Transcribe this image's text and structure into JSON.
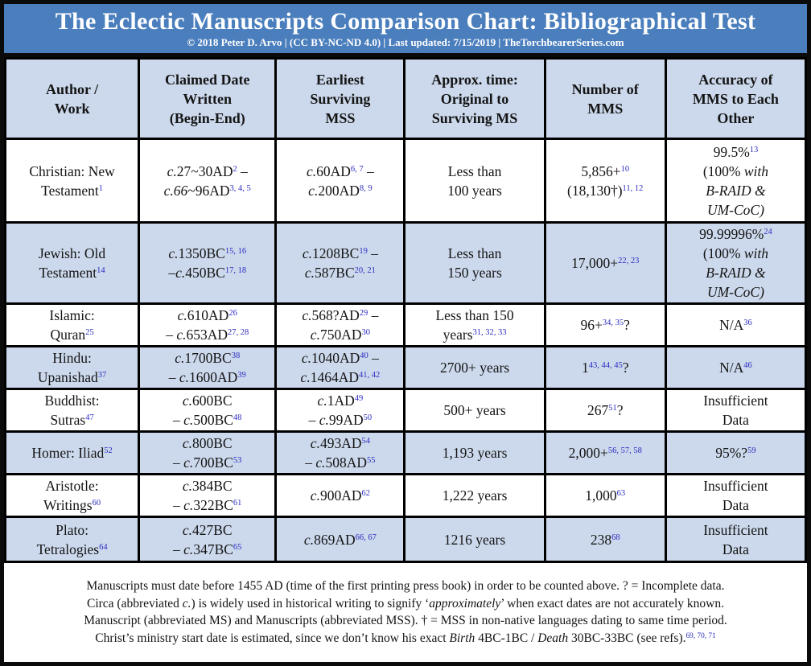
{
  "title": "The Eclectic Manuscripts Comparison Chart: Bibliographical Test",
  "subtitle": "© 2018 Peter D. Arvo | (CC BY-NC-ND 4.0) | Last updated: 7/15/2019 | TheTorchbearerSeries.com",
  "colors": {
    "header_blue": "#4a7ebd",
    "row_alt": "#ccd9ec",
    "ref_blue": "#2c2cc0",
    "border": "#000000",
    "text": "#141414",
    "title_text": "#ffffff"
  },
  "chart_data": {
    "type": "table",
    "title": "The Eclectic Manuscripts Comparison Chart: Bibliographical Test",
    "subtitle": "© 2018 Peter D. Arvo | (CC BY-NC-ND 4.0) | Last updated: 7/15/2019 | TheTorchbearerSeries.com",
    "columns": [
      "Author /\nWork",
      "Claimed Date\nWritten\n(Begin-End)",
      "Earliest\nSurviving\nMSS",
      "Approx. time:\nOriginal to\nSurviving MS",
      "Number of\nMMS",
      "Accuracy of\nMMS to Each\nOther"
    ],
    "rows": [
      {
        "author": "Christian: New\nTestament^1^",
        "claimed": "*c.*27~30AD^2^ –\n*c.66*~96AD^3, 4, 5^",
        "earliest": "*c.*60AD^6, 7^ –\n*c.*200AD^8, 9^",
        "time": "Less than\n100 years",
        "number": "5,856+^10^\n(18,130†)^11, 12^",
        "accuracy": "99.5%^13^\n(100% *with*\n*B-RAID &*\n*UM-CoC)*"
      },
      {
        "author": "Jewish: Old\nTestament^14^",
        "claimed": "*c.*1350BC^15, 16^\n–*c.*450BC^17, 18^",
        "earliest": "*c.*1208BC^19^ –\n*c.*587BC^20, 21^",
        "time": "Less than\n150 years",
        "number": "17,000+^22, 23^",
        "accuracy": "99.99996%^24^\n(100% *with*\n*B-RAID &*\n*UM-CoC)*"
      },
      {
        "author": "Islamic:\nQuran^25^",
        "claimed": "*c.*610AD^26^\n– *c.*653AD^27, 28^",
        "earliest": "*c.*568?AD^29^ –\n*c.*750AD^30^",
        "time": "Less than 150\nyears^31, 32, 33^",
        "number": "96+^34, 35^?",
        "accuracy": "N/A^36^"
      },
      {
        "author": "Hindu:\nUpanishad^37^",
        "claimed": "*c.*1700BC^38^\n– *c.*1600AD^39^",
        "earliest": "*c.*1040AD^40^ –\n*c.*1464AD^41, 42^",
        "time": "2700+ years",
        "number": "1^43, 44, 45^?",
        "accuracy": "N/A^46^"
      },
      {
        "author": "Buddhist:\nSutras^47^",
        "claimed": "*c.*600BC\n– *c.*500BC^48^",
        "earliest": "*c.*1AD^49^\n– *c.*99AD^50^",
        "time": "500+ years",
        "number": "267^51^?",
        "accuracy": "Insufficient\nData"
      },
      {
        "author": "Homer: Iliad^52^",
        "claimed": "*c.*800BC\n– *c.*700BC^53^",
        "earliest": "*c.*493AD^54^\n– *c.*508AD^55^",
        "time": "1,193 years",
        "number": "2,000+^56, 57, 58^",
        "accuracy": "95%?^59^"
      },
      {
        "author": "Aristotle:\nWritings^60^",
        "claimed": "*c.*384BC\n– *c.*322BC^61^",
        "earliest": "*c.*900AD^62^",
        "time": "1,222 years",
        "number": "1,000^63^",
        "accuracy": "Insufficient\nData"
      },
      {
        "author": "Plato:\nTetralogies^64^",
        "claimed": "*c.*427BC\n– *c.*347BC^65^",
        "earliest": "*c.*869AD^66, 67^",
        "time": "1216 years",
        "number": "238^68^",
        "accuracy": "Insufficient\nData"
      }
    ],
    "notes": [
      "Manuscripts must date before 1455 AD (time of the first printing press book) in order to be counted above. ? = Incomplete data.",
      "Circa (abbreviated *c.*) is widely used in historical writing to signify ‘*approximately*’ when exact dates are not accurately known.",
      "Manuscript (abbreviated MS) and Manuscripts (abbreviated MSS). † = MSS in non-native languages dating to same time period.",
      "Christ’s ministry start date is estimated, since we don’t know his exact *Birth* 4BC-1BC / *Death* 30BC-33BC (see refs).^69, 70, 71^"
    ]
  }
}
